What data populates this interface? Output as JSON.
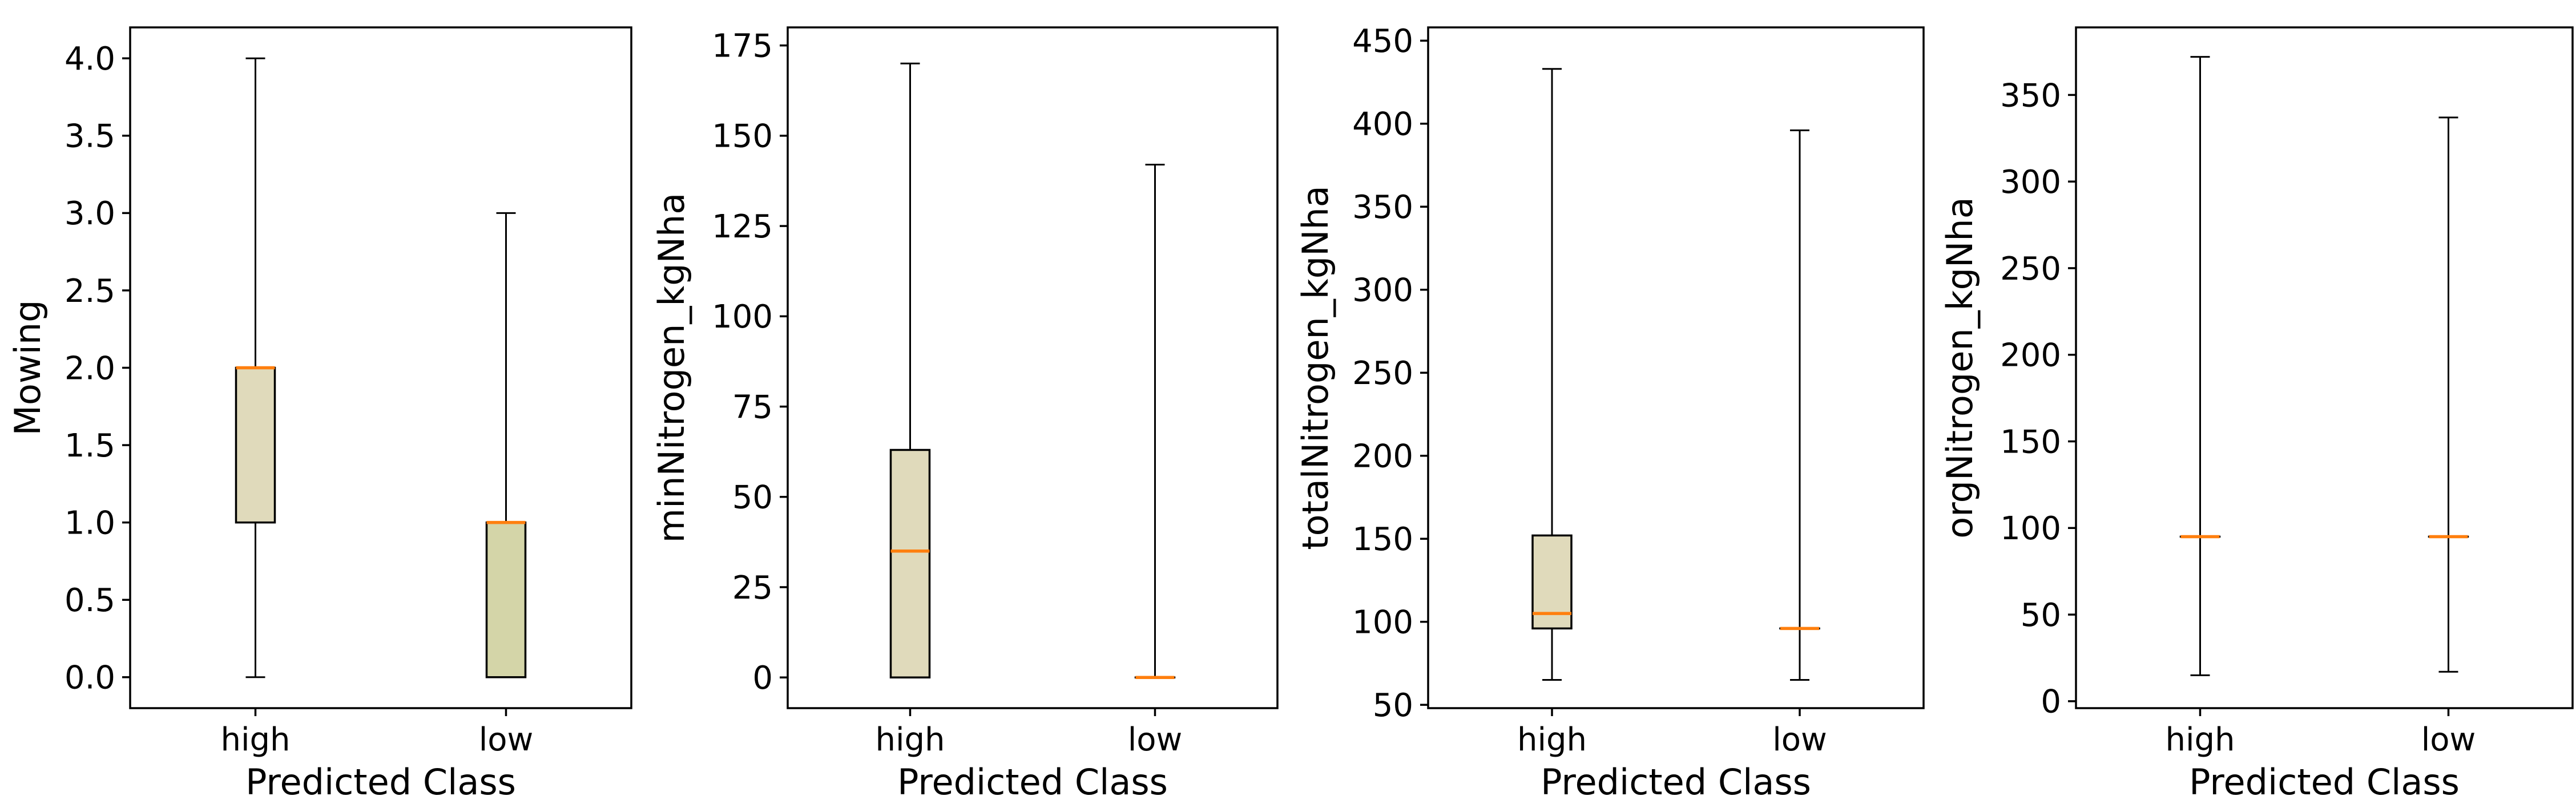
{
  "figure": {
    "background": "#ffffff",
    "text_color": "#000000",
    "shared_xlabel": "Predicted Class",
    "categories": [
      "high",
      "low"
    ]
  },
  "style_colors": {
    "median": "#ff7f0e",
    "box_edge": "#000000",
    "whisker": "#000000",
    "spine": "#000000",
    "high_box_fill": "#e0dabb",
    "low_box_fill": "#d4d5a8"
  },
  "chart_data": [
    {
      "type": "box",
      "title": "",
      "ylabel": "Mowing",
      "xlabel": "Predicted Class",
      "categories": [
        "high",
        "low"
      ],
      "ytick_labels": [
        "0.0",
        "0.5",
        "1.0",
        "1.5",
        "2.0",
        "2.5",
        "3.0",
        "3.5",
        "4.0"
      ],
      "ytick_values": [
        0,
        0.5,
        1,
        1.5,
        2,
        2.5,
        3,
        3.5,
        4
      ],
      "ylim": [
        -0.2,
        4.2
      ],
      "grid": false,
      "legend": "none",
      "boxes": [
        {
          "category": "high",
          "whislo": 0.0,
          "q1": 1.0,
          "med": 2.0,
          "q3": 2.0,
          "whishi": 4.0,
          "fill": "#e0dabb"
        },
        {
          "category": "low",
          "whislo": 0.0,
          "q1": 0.0,
          "med": 1.0,
          "q3": 1.0,
          "whishi": 3.0,
          "fill": "#d4d5a8"
        }
      ]
    },
    {
      "type": "box",
      "title": "",
      "ylabel": "minNitrogen_kgNha",
      "xlabel": "Predicted Class",
      "categories": [
        "high",
        "low"
      ],
      "ytick_labels": [
        "0",
        "25",
        "50",
        "75",
        "100",
        "125",
        "150",
        "175"
      ],
      "ytick_values": [
        0,
        25,
        50,
        75,
        100,
        125,
        150,
        175
      ],
      "ylim": [
        -8.5,
        180
      ],
      "grid": false,
      "legend": "none",
      "boxes": [
        {
          "category": "high",
          "whislo": 0,
          "q1": 0,
          "med": 35,
          "q3": 63,
          "whishi": 170,
          "fill": "#e0dabb"
        },
        {
          "category": "low",
          "whislo": 0,
          "q1": 0,
          "med": 0,
          "q3": 0,
          "whishi": 142,
          "fill": "#d4d5a8"
        }
      ]
    },
    {
      "type": "box",
      "title": "",
      "ylabel": "totalNitrogen_kgNha",
      "xlabel": "Predicted Class",
      "categories": [
        "high",
        "low"
      ],
      "ytick_labels": [
        "50",
        "100",
        "150",
        "200",
        "250",
        "300",
        "350",
        "400",
        "450"
      ],
      "ytick_values": [
        50,
        100,
        150,
        200,
        250,
        300,
        350,
        400,
        450
      ],
      "ylim": [
        48,
        458
      ],
      "grid": false,
      "legend": "none",
      "boxes": [
        {
          "category": "high",
          "whislo": 65,
          "q1": 96,
          "med": 105,
          "q3": 152,
          "whishi": 433,
          "fill": "#e0dabb"
        },
        {
          "category": "low",
          "whislo": 65,
          "q1": 96,
          "med": 96,
          "q3": 96,
          "whishi": 396,
          "fill": "#d4d5a8"
        }
      ]
    },
    {
      "type": "box",
      "title": "",
      "ylabel": "orgNitrogen_kgNha",
      "xlabel": "Predicted Class",
      "categories": [
        "high",
        "low"
      ],
      "ytick_labels": [
        "0",
        "50",
        "100",
        "150",
        "200",
        "250",
        "300",
        "350"
      ],
      "ytick_values": [
        0,
        50,
        100,
        150,
        200,
        250,
        300,
        350
      ],
      "ylim": [
        -4,
        389
      ],
      "grid": false,
      "legend": "none",
      "boxes": [
        {
          "category": "high",
          "whislo": 15,
          "q1": 95,
          "med": 95,
          "q3": 95,
          "whishi": 372,
          "fill": "#e0dabb"
        },
        {
          "category": "low",
          "whislo": 17,
          "q1": 95,
          "med": 95,
          "q3": 95,
          "whishi": 337,
          "fill": "#d4d5a8"
        }
      ]
    }
  ]
}
